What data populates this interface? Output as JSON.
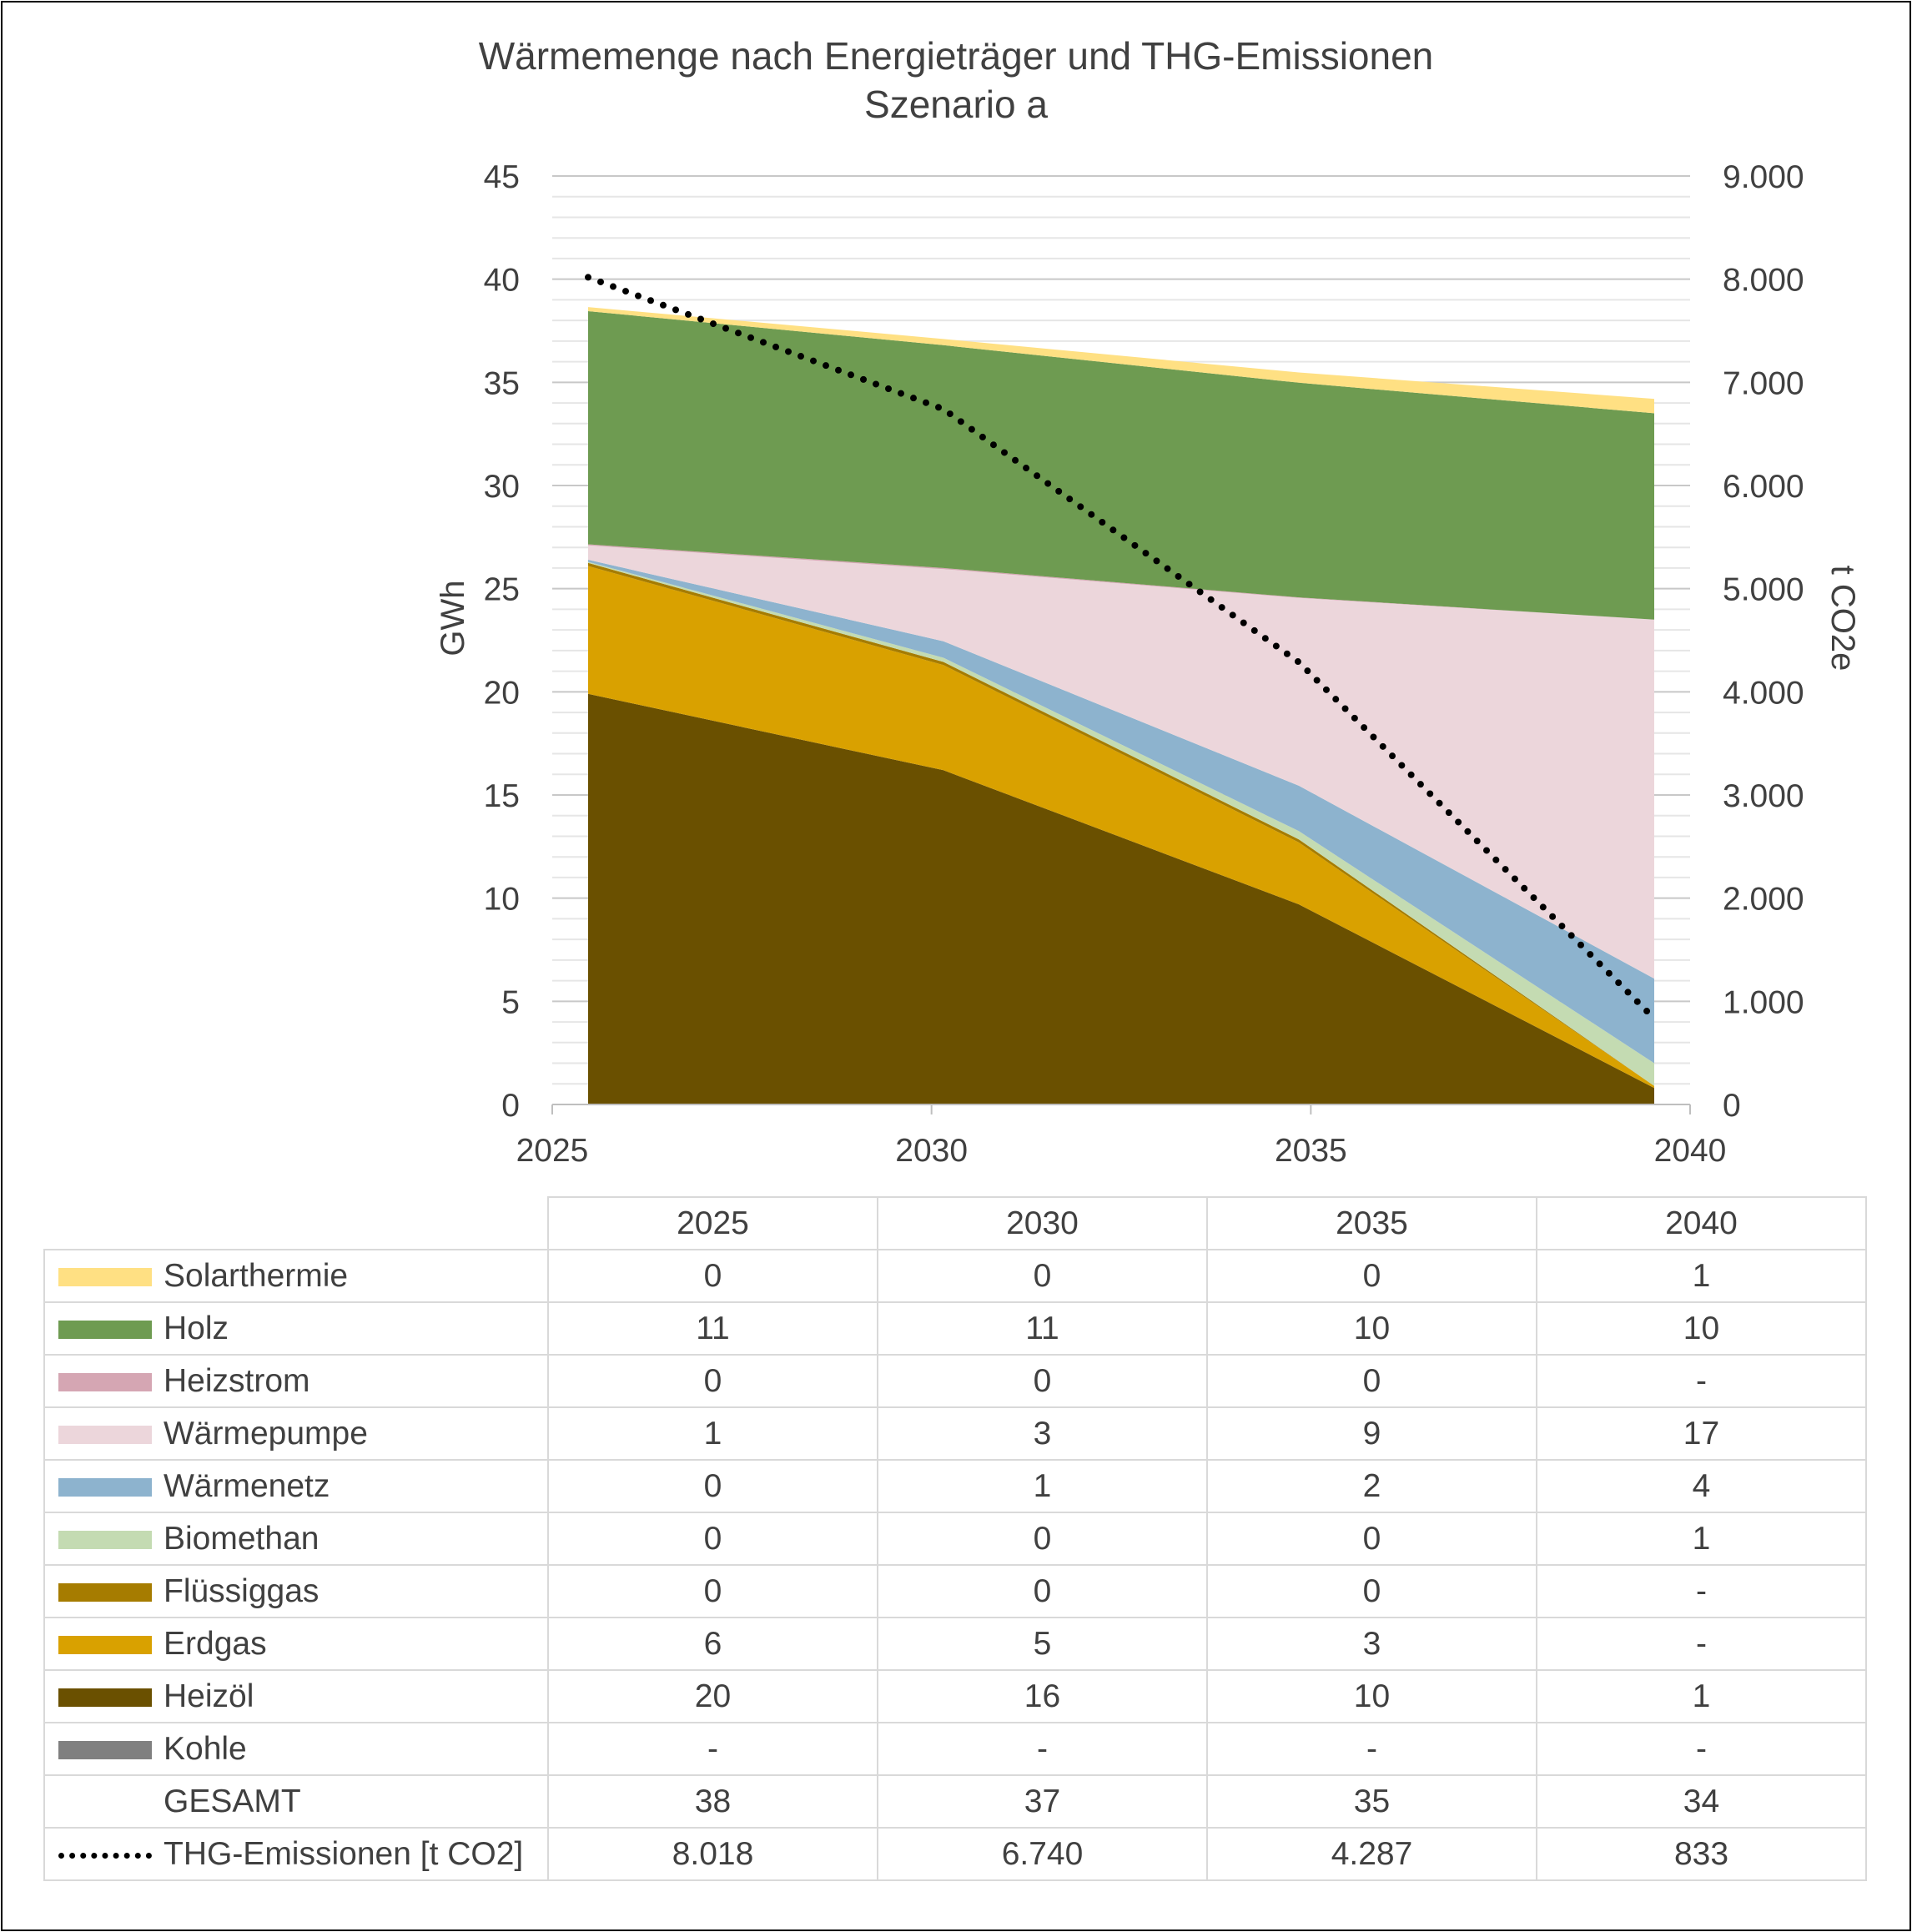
{
  "chart_data": {
    "type": "area",
    "title": "Wärmemenge nach Energieträger und THG-Emissionen",
    "subtitle": "Szenario a",
    "x": [
      "2025",
      "2030",
      "2035",
      "2040"
    ],
    "y_left_label": "GWh",
    "y_right_label": "t CO2e",
    "y_left_ticks": [
      "0",
      "5",
      "10",
      "15",
      "20",
      "25",
      "30",
      "35",
      "40",
      "45"
    ],
    "y_right_ticks": [
      "0",
      "1.000",
      "2.000",
      "3.000",
      "4.000",
      "5.000",
      "6.000",
      "7.000",
      "8.000",
      "9.000"
    ],
    "ylim_left": [
      0,
      45
    ],
    "ylim_right": [
      0,
      9000
    ],
    "stack_order": [
      "Kohle",
      "Heizöl",
      "Erdgas",
      "Flüssiggas",
      "Biomethan",
      "Wärmenetz",
      "Wärmepumpe",
      "Heizstrom",
      "Holz",
      "Solarthermie"
    ],
    "series": [
      {
        "name": "Solarthermie",
        "color": "#ffe083",
        "values": [
          0.2,
          0.3,
          0.5,
          0.7
        ]
      },
      {
        "name": "Holz",
        "color": "#6e9b51",
        "values": [
          11.3,
          10.8,
          10.4,
          10.0
        ]
      },
      {
        "name": "Heizstrom",
        "color": "#d5a6b3",
        "values": [
          0.05,
          0.05,
          0.03,
          0
        ]
      },
      {
        "name": "Wärmepumpe",
        "color": "#ecd6db",
        "values": [
          0.7,
          3.5,
          9.1,
          17.4
        ]
      },
      {
        "name": "Wärmenetz",
        "color": "#8db3ce",
        "values": [
          0.1,
          0.8,
          2.2,
          4.1
        ]
      },
      {
        "name": "Biomethan",
        "color": "#c4dbb2",
        "values": [
          0.05,
          0.2,
          0.4,
          1.1
        ]
      },
      {
        "name": "Flüssiggas",
        "color": "#a67c00",
        "values": [
          0.15,
          0.15,
          0.15,
          0
        ]
      },
      {
        "name": "Erdgas",
        "color": "#d9a100",
        "values": [
          6.2,
          5.1,
          3.0,
          0.1
        ]
      },
      {
        "name": "Heizöl",
        "color": "#6a5000",
        "values": [
          19.9,
          16.2,
          9.7,
          0.8
        ]
      },
      {
        "name": "Kohle",
        "color": "#808080",
        "values": [
          0,
          0,
          0,
          0
        ]
      }
    ],
    "emissions": {
      "name": "THG-Emissionen [t CO2]",
      "axis": "right",
      "values": [
        8018,
        6740,
        4287,
        833
      ]
    }
  },
  "table": {
    "header": [
      "2025",
      "2030",
      "2035",
      "2040"
    ],
    "rows": [
      {
        "label": "Solarthermie",
        "swatch": "#ffe083",
        "values": [
          "0",
          "0",
          "0",
          "1"
        ]
      },
      {
        "label": "Holz",
        "swatch": "#6e9b51",
        "values": [
          "11",
          "11",
          "10",
          "10"
        ]
      },
      {
        "label": "Heizstrom",
        "swatch": "#d5a6b3",
        "values": [
          "0",
          "0",
          "0",
          "-"
        ]
      },
      {
        "label": "Wärmepumpe",
        "swatch": "#ecd6db",
        "values": [
          "1",
          "3",
          "9",
          "17"
        ]
      },
      {
        "label": "Wärmenetz",
        "swatch": "#8db3ce",
        "values": [
          "0",
          "1",
          "2",
          "4"
        ]
      },
      {
        "label": "Biomethan",
        "swatch": "#c4dbb2",
        "values": [
          "0",
          "0",
          "0",
          "1"
        ]
      },
      {
        "label": "Flüssiggas",
        "swatch": "#a67c00",
        "values": [
          "0",
          "0",
          "0",
          "-"
        ]
      },
      {
        "label": "Erdgas",
        "swatch": "#d9a100",
        "values": [
          "6",
          "5",
          "3",
          "-"
        ]
      },
      {
        "label": "Heizöl",
        "swatch": "#6a5000",
        "values": [
          "20",
          "16",
          "10",
          "1"
        ]
      },
      {
        "label": "Kohle",
        "swatch": "#808080",
        "values": [
          "-",
          "-",
          "-",
          "-"
        ]
      },
      {
        "label": "GESAMT",
        "swatch": "",
        "values": [
          "38",
          "37",
          "35",
          "34"
        ]
      },
      {
        "label": "THG-Emissionen [t CO2]",
        "swatch": "dots",
        "values": [
          "8.018",
          "6.740",
          "4.287",
          "833"
        ]
      }
    ]
  }
}
